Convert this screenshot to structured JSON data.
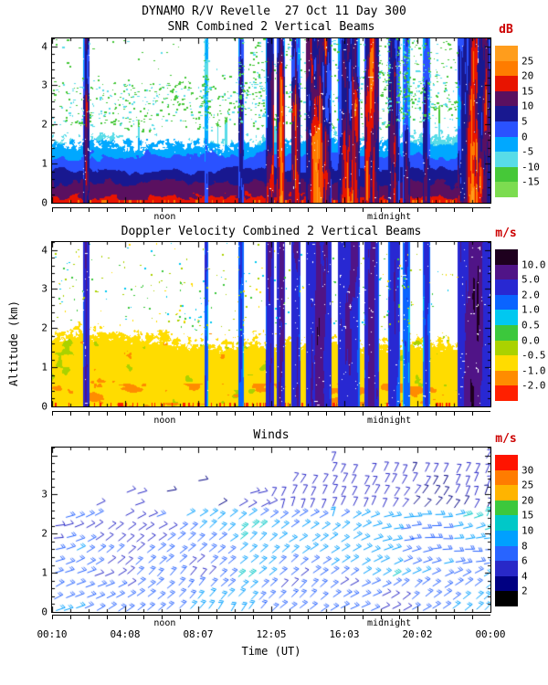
{
  "title": "DYNAMO R/V Revelle  27 Oct 11 Day 300",
  "x_axis": {
    "tick_labels": [
      "00:10",
      "04:08",
      "08:07",
      "12:05",
      "16:03",
      "20:02",
      "00:00"
    ],
    "label": "Time (UT)",
    "noon_label": "noon",
    "midnight_label": "midnight",
    "noon_frac": 0.257,
    "midnight_frac": 0.769
  },
  "y_axis": {
    "label": "Altitude (km)",
    "range_km": [
      0,
      4.2
    ]
  },
  "panels": [
    {
      "title": "SNR Combined 2 Vertical Beams",
      "units": "dB",
      "units_color": "#cc0000",
      "y_tick_labels": [
        "0",
        "1",
        "2",
        "3",
        "4"
      ]
    },
    {
      "title": "Doppler Velocity Combined 2 Vertical Beams",
      "units": "m/s",
      "units_color": "#cc0000",
      "y_tick_labels": [
        "0",
        "1",
        "2",
        "3",
        "4"
      ]
    },
    {
      "title": "Winds",
      "units": "m/s",
      "units_color": "#cc0000",
      "y_tick_labels": [
        "0",
        "1",
        "2",
        "3"
      ]
    }
  ],
  "chart_data": [
    {
      "type": "heatmap",
      "title": "SNR Combined 2 Vertical Beams",
      "xlabel": "Time (UT)",
      "ylabel": "Altitude (km)",
      "x_tick_labels": [
        "00:10",
        "04:08",
        "08:07",
        "12:05",
        "16:03",
        "20:02",
        "00:00"
      ],
      "local_time_annotations": [
        "noon",
        "midnight"
      ],
      "ylim": [
        0,
        4.2
      ],
      "colorbar_units": "dB",
      "colorbar_tick_labels": [
        "25",
        "20",
        "15",
        "10",
        "5",
        "0",
        "-5",
        "-10",
        "-15"
      ],
      "colorbar_levels": [
        25,
        20,
        15,
        10,
        5,
        0,
        -5,
        -10,
        -15
      ],
      "colorbar_colors_top_to_bottom": [
        "#ff9d1c",
        "#ff7c00",
        "#e81400",
        "#5a1060",
        "#181890",
        "#2a52ff",
        "#00a8ff",
        "#58dce8",
        "#46c838",
        "#7cdc50"
      ],
      "features": [
        "Boundary-layer echo 0-2 km all day: SNR ~17-20 dB near surface decreasing to about -10 dB near 2 km (red/purple/blue/cyan/green layering)",
        "Thin ground-clutter line of 15-20 dB at 0-0.1 km",
        "Scattered low-SNR cloud echoes (-15 to -5 dB, green speckle) between 1.5 and 4.2 km",
        "Full-depth precipitation columns (SNR 10 to >25 dB, red/orange with dark-purple streaks) clustered after 12:05 UT, around 16 UT and near 23-24 UT"
      ],
      "precip_events_frac": [
        [
          0.07,
          0.085,
          0.75
        ],
        [
          0.345,
          0.356,
          0.3
        ],
        [
          0.424,
          0.436,
          0.35
        ],
        [
          0.487,
          0.506,
          0.9
        ],
        [
          0.512,
          0.531,
          0.95
        ],
        [
          0.545,
          0.566,
          0.85
        ],
        [
          0.578,
          0.636,
          1.0
        ],
        [
          0.652,
          0.7,
          1.0
        ],
        [
          0.712,
          0.744,
          0.9
        ],
        [
          0.765,
          0.792,
          0.55
        ],
        [
          0.8,
          0.815,
          0.4
        ],
        [
          0.845,
          0.862,
          0.45
        ],
        [
          0.925,
          1.0,
          0.95
        ]
      ]
    },
    {
      "type": "heatmap",
      "title": "Doppler Velocity Combined 2 Vertical Beams",
      "xlabel": "Time (UT)",
      "ylabel": "Altitude (km)",
      "x_tick_labels": [
        "00:10",
        "04:08",
        "08:07",
        "12:05",
        "16:03",
        "20:02",
        "00:00"
      ],
      "local_time_annotations": [
        "noon",
        "midnight"
      ],
      "ylim": [
        0,
        4.2
      ],
      "colorbar_units": "m/s",
      "colorbar_tick_labels": [
        "10.0",
        "5.0",
        "2.0",
        "1.0",
        "0.5",
        "0.0",
        "-0.5",
        "-1.0",
        "-2.0"
      ],
      "colorbar_levels": [
        10,
        5,
        2,
        1,
        0.5,
        0,
        -0.5,
        -1,
        -2
      ],
      "colorbar_colors_top_to_bottom": [
        "#1e001e",
        "#501487",
        "#2828d2",
        "#0a64ff",
        "#00c8f0",
        "#3cc83c",
        "#aad200",
        "#ffdc00",
        "#ff8c00",
        "#ff2000"
      ],
      "features": [
        "Clear-air boundary layer 0-2 km with weak velocities -1 to 0 m/s (yellow/orange)",
        "Scattered red pixels (< -2 m/s) at the lowest range gate",
        "Precipitation columns with 2 to >10 m/s downward velocities (blue/indigo/purple, black streaks) at the same times as the SNR panel",
        "Sparse yellow/green/cyan cloud echoes above 2 km"
      ]
    },
    {
      "type": "wind_barbs",
      "title": "Winds",
      "xlabel": "Time (UT)",
      "ylabel": "Altitude (km)",
      "x_tick_labels": [
        "00:10",
        "04:08",
        "08:07",
        "12:05",
        "16:03",
        "20:02",
        "00:00"
      ],
      "local_time_annotations": [
        "noon",
        "midnight"
      ],
      "ylim": [
        0,
        4.2
      ],
      "colorbar_units": "m/s",
      "colorbar_tick_labels": [
        "30",
        "25",
        "20",
        "15",
        "10",
        "8",
        "6",
        "4",
        "2"
      ],
      "colorbar_levels": [
        30,
        25,
        20,
        15,
        10,
        8,
        6,
        4,
        2
      ],
      "colorbar_colors_top_to_bottom": [
        "#ff1400",
        "#ff7c00",
        "#ffb400",
        "#3cc83c",
        "#00c8c8",
        "#00a0ff",
        "#2864ff",
        "#2828c8",
        "#000082",
        "#000000"
      ],
      "features": [
        "Wind barbs below ~2.5 km in the first half, rising to ~3.7 km after local noon",
        "Speeds mostly 4-10 m/s (blue/azure) in the boundary layer",
        "Pockets of 10-20 m/s (cyan/green) near 1-2 km in the middle of the period",
        "Weak 2-4 m/s winds (navy/dark) above 2.5 km"
      ]
    }
  ]
}
